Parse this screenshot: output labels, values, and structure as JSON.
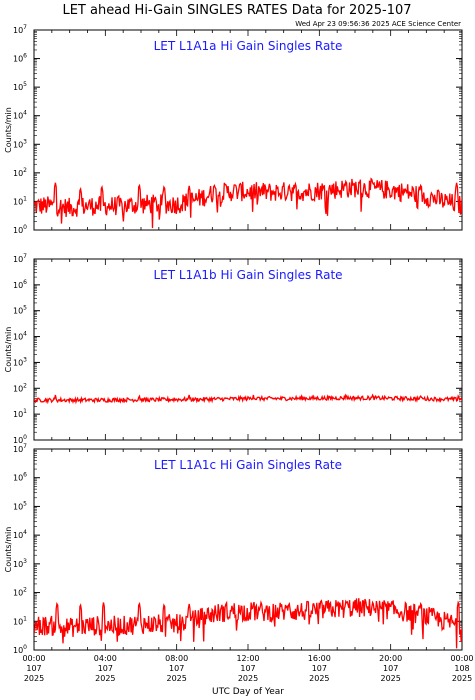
{
  "page": {
    "title": "LET ahead Hi-Gain SINGLES RATES Data for 2025-107",
    "timestamp": "Wed Apr 23 09:56:36 2025 ACE Science Center"
  },
  "colors": {
    "series": "#ff0000",
    "panel_title": "#1a1aff",
    "axes": "#000000"
  },
  "shared_axes": {
    "ylabel": "Counts/min",
    "xlabel": "UTC Day of Year",
    "yscale": "log",
    "ylim": [
      1,
      10000000
    ],
    "xlim_hours": [
      0,
      24
    ],
    "ytick_values": [
      1,
      10,
      100,
      1000,
      10000,
      100000,
      1000000,
      10000000
    ],
    "ytick_exponents": [
      "0",
      "1",
      "2",
      "3",
      "4",
      "5",
      "6",
      "7"
    ],
    "xtick_labels": [
      {
        "time": "00:00",
        "day": "107",
        "year": "2025"
      },
      {
        "time": "04:00",
        "day": "107",
        "year": "2025"
      },
      {
        "time": "08:00",
        "day": "107",
        "year": "2025"
      },
      {
        "time": "12:00",
        "day": "107",
        "year": "2025"
      },
      {
        "time": "16:00",
        "day": "107",
        "year": "2025"
      },
      {
        "time": "20:00",
        "day": "107",
        "year": "2025"
      },
      {
        "time": "00:00",
        "day": "108",
        "year": "2025"
      }
    ]
  },
  "chart_data": [
    {
      "type": "line",
      "title": "LET L1A1a Hi Gain Singles Rate",
      "ylabel": "Counts/min",
      "yscale": "log",
      "ylim": [
        1,
        10000000
      ],
      "x_hours": [
        0,
        1,
        2,
        3,
        4,
        5,
        6,
        7,
        8,
        9,
        10,
        11,
        12,
        13,
        14,
        15,
        16,
        17,
        18,
        19,
        20,
        21,
        22,
        23,
        24
      ],
      "baseline": [
        7,
        7,
        6,
        7,
        7,
        7,
        8,
        8,
        8,
        11,
        18,
        22,
        22,
        21,
        22,
        22,
        24,
        27,
        30,
        28,
        25,
        20,
        15,
        10,
        7
      ],
      "spikes": [
        [
          1.2,
          45
        ],
        [
          2.6,
          30
        ],
        [
          3.8,
          35
        ],
        [
          5.9,
          40
        ],
        [
          7.3,
          35
        ],
        [
          8.7,
          35
        ],
        [
          10.1,
          40
        ],
        [
          14.3,
          40
        ],
        [
          17.5,
          55
        ],
        [
          19.0,
          50
        ],
        [
          21.7,
          40
        ],
        [
          23.7,
          45
        ]
      ]
    },
    {
      "type": "line",
      "title": "LET L1A1b Hi Gain Singles Rate",
      "ylabel": "Counts/min",
      "yscale": "log",
      "ylim": [
        1,
        10000000
      ],
      "x_hours": [
        0,
        1,
        2,
        3,
        4,
        5,
        6,
        7,
        8,
        9,
        10,
        11,
        12,
        13,
        14,
        15,
        16,
        17,
        18,
        19,
        20,
        21,
        22,
        23,
        24
      ],
      "baseline": [
        35,
        35,
        35,
        35,
        35,
        36,
        36,
        36,
        37,
        37,
        38,
        39,
        40,
        40,
        40,
        41,
        41,
        42,
        42,
        42,
        41,
        40,
        39,
        38,
        37
      ],
      "spikes": [
        [
          1.2,
          55
        ],
        [
          5.9,
          55
        ],
        [
          8.7,
          55
        ],
        [
          12.3,
          55
        ],
        [
          17.5,
          60
        ],
        [
          19.0,
          60
        ],
        [
          21.7,
          55
        ],
        [
          23.8,
          55
        ]
      ]
    },
    {
      "type": "line",
      "title": "LET L1A1c Hi Gain Singles Rate",
      "ylabel": "Counts/min",
      "xlabel": "UTC Day of Year",
      "yscale": "log",
      "ylim": [
        1,
        10000000
      ],
      "x_hours": [
        0,
        1,
        2,
        3,
        4,
        5,
        6,
        7,
        8,
        9,
        10,
        11,
        12,
        13,
        14,
        15,
        16,
        17,
        18,
        19,
        20,
        21,
        22,
        23,
        24
      ],
      "baseline": [
        7,
        7,
        6,
        7,
        7,
        7,
        8,
        8,
        8,
        11,
        18,
        22,
        22,
        21,
        22,
        22,
        24,
        27,
        30,
        28,
        25,
        20,
        15,
        10,
        7
      ],
      "spikes": [
        [
          1.3,
          45
        ],
        [
          2.6,
          40
        ],
        [
          3.9,
          45
        ],
        [
          5.9,
          45
        ],
        [
          7.3,
          40
        ],
        [
          8.7,
          40
        ],
        [
          12.3,
          40
        ],
        [
          14.3,
          45
        ],
        [
          17.5,
          55
        ],
        [
          19.0,
          50
        ],
        [
          21.7,
          45
        ],
        [
          23.8,
          50
        ]
      ]
    }
  ]
}
